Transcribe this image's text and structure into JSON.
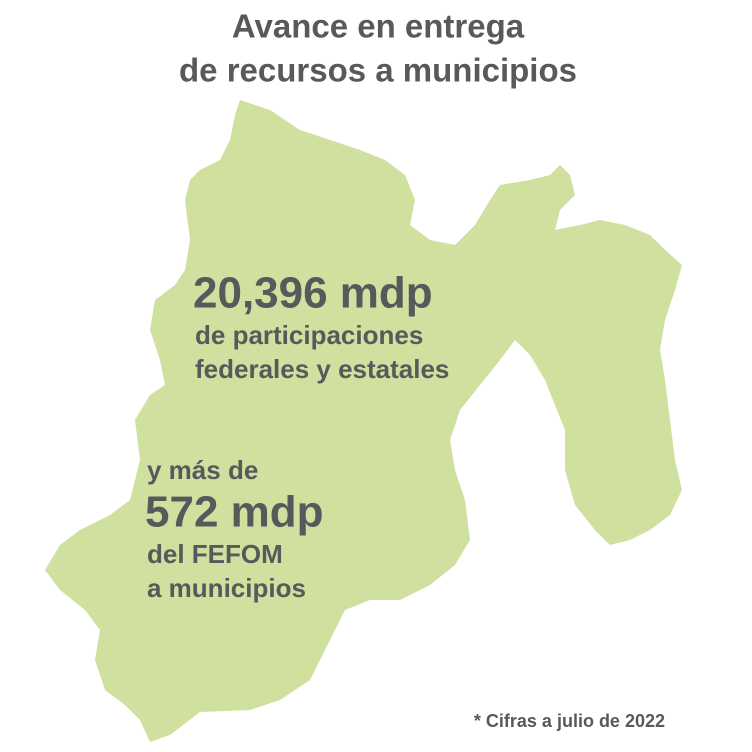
{
  "title": {
    "line1": "Avance en entrega",
    "line2": "de recursos a municipios"
  },
  "participaciones": {
    "amount": "20,396 mdp",
    "line1": "de participaciones",
    "line2": "federales y estatales"
  },
  "fefom": {
    "intro": "y más de",
    "amount": "572 mdp",
    "line1": "del FEFOM",
    "line2": "a municipios"
  },
  "footnote": "* Cifras a julio de 2022"
}
